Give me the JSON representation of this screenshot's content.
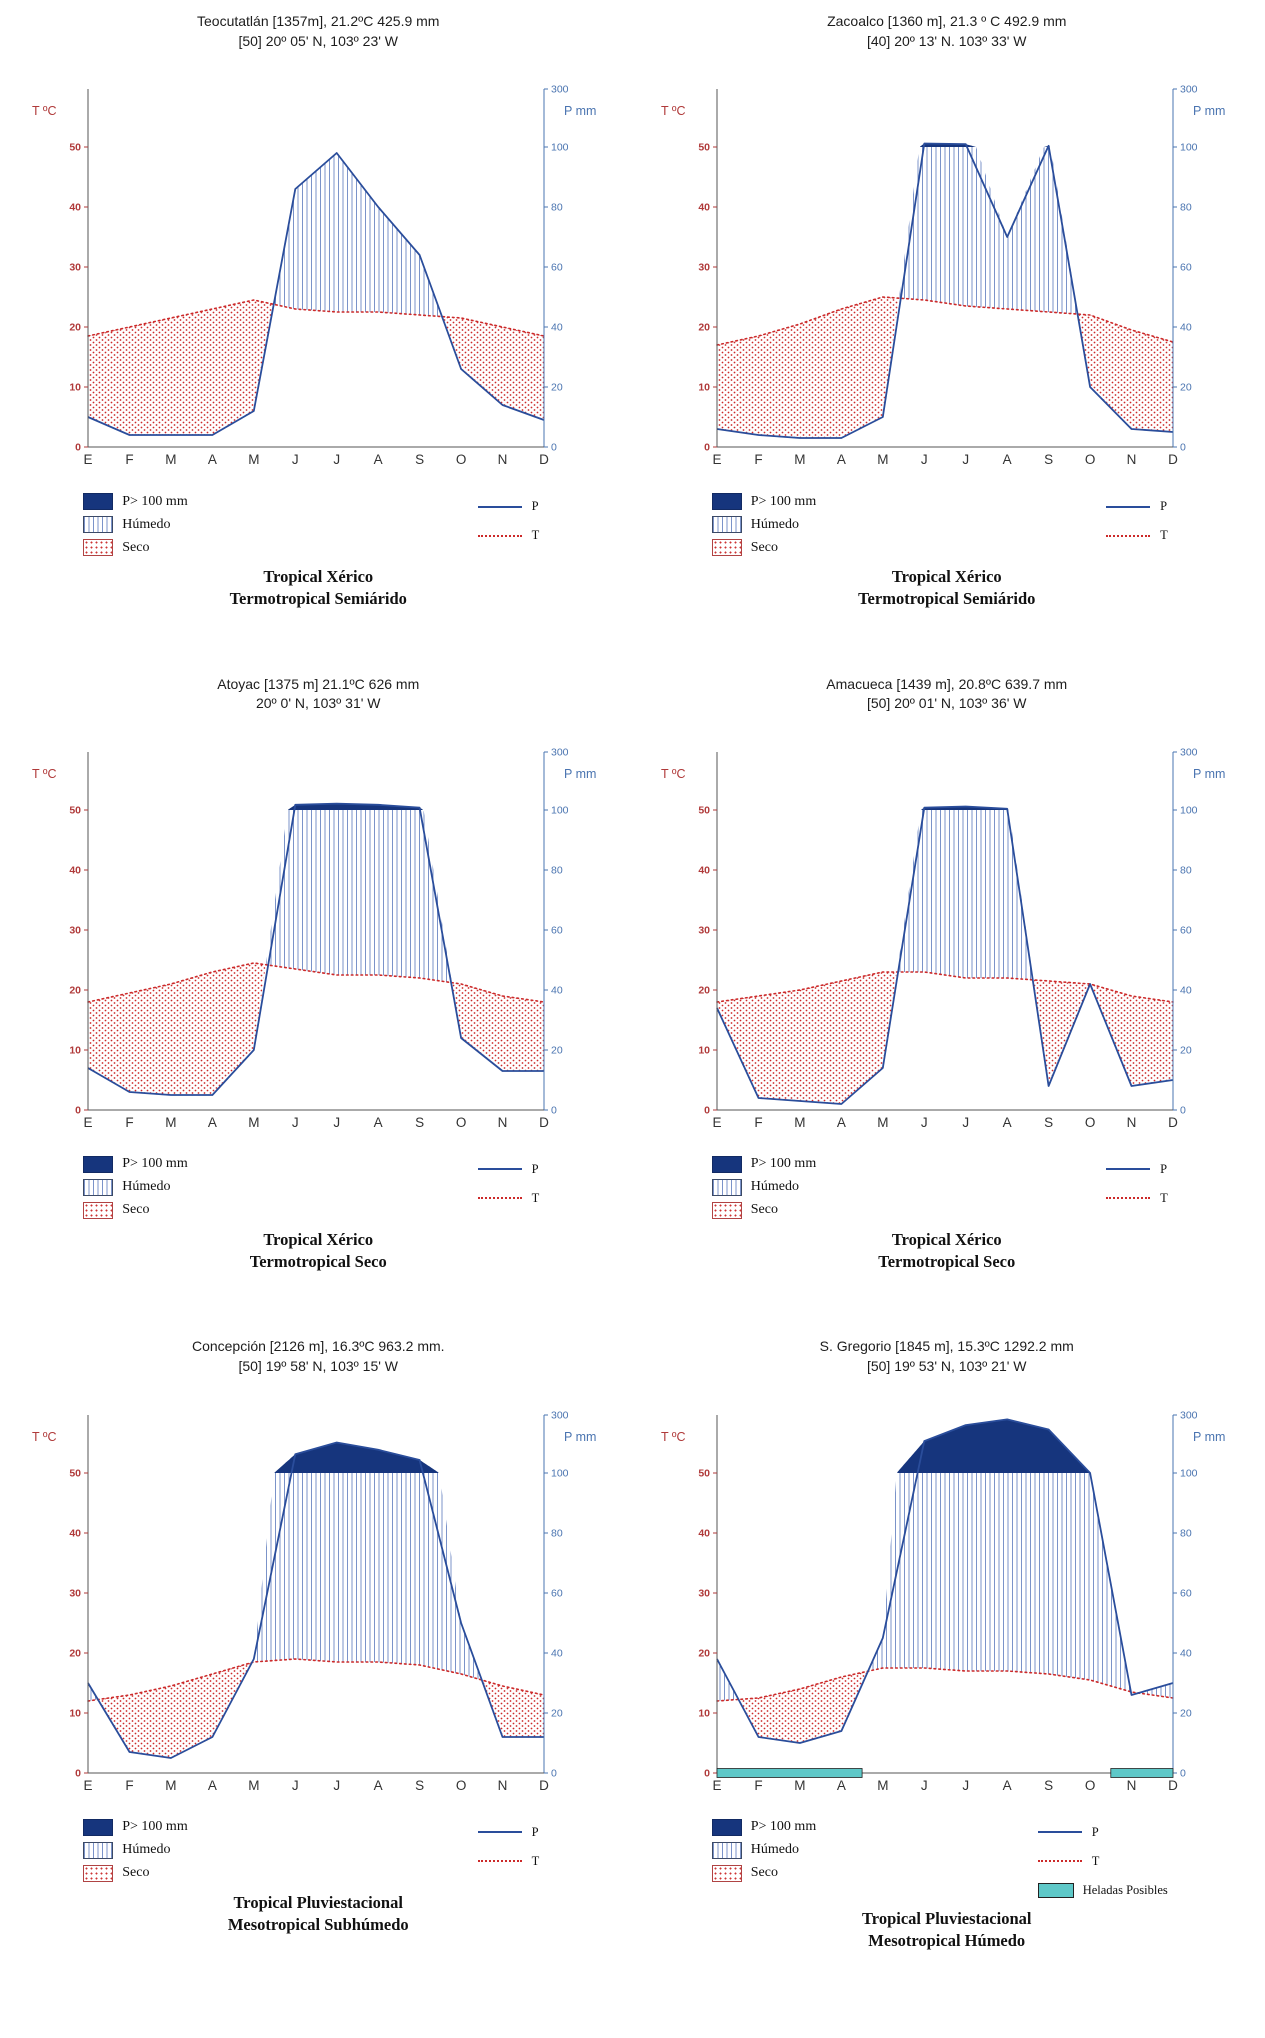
{
  "months": [
    "E",
    "F",
    "M",
    "A",
    "M",
    "J",
    "J",
    "A",
    "S",
    "O",
    "N",
    "D"
  ],
  "axes": {
    "t_label": "T ºC",
    "p_label": "P mm",
    "t_ticks": [
      0,
      10,
      20,
      30,
      40,
      50
    ],
    "p_ticks": [
      0,
      20,
      40,
      60,
      80,
      100,
      300
    ]
  },
  "legend": {
    "p100": "P> 100 mm",
    "humedo": "Húmedo",
    "seco": "Seco",
    "p": "P",
    "t": "T",
    "heladas": "Heladas Posibles"
  },
  "colors": {
    "p_line": "#2a4d9b",
    "t_line": "#cc2a2a",
    "navy": "#16357d",
    "hatch": "#7b93c9",
    "teal": "#5ec8c8",
    "t_axis": "#b03a3a",
    "p_axis": "#4a74b0"
  },
  "chart_data": [
    {
      "type": "area",
      "subtype": "walter-lieth-climograph",
      "name": "Teocutatlán",
      "title_line1": "Teocutatlán [1357m],  21.2ºC   425.9 mm",
      "title_line2": "[50] 20º 05' N,  103º 23' W",
      "class_line1": "Tropical Xérico",
      "class_line2": "Termotropical Semiárido",
      "elevation_m": 1357,
      "mean_temp_c": 21.2,
      "annual_precip_mm": 425.9,
      "t_axis_range": [
        0,
        50
      ],
      "p_axis_range": [
        0,
        300
      ],
      "precip_mm": [
        10,
        4,
        4,
        4,
        12,
        86,
        98,
        80,
        64,
        26,
        14,
        9
      ],
      "temp_c": [
        18.5,
        20,
        21.5,
        23,
        24.5,
        23,
        22.5,
        22.5,
        22,
        21.5,
        20,
        18.5
      ],
      "heladas_months": null
    },
    {
      "type": "area",
      "subtype": "walter-lieth-climograph",
      "name": "Zacoalco",
      "title_line1": "Zacoalco [1360 m], 21.3 º C  492.9 mm",
      "title_line2": "[40]  20º 13' N. 103º  33' W",
      "class_line1": "Tropical Xérico",
      "class_line2": "Termotropical Semiárido",
      "elevation_m": 1360,
      "mean_temp_c": 21.3,
      "annual_precip_mm": 492.9,
      "t_axis_range": [
        0,
        50
      ],
      "p_axis_range": [
        0,
        300
      ],
      "precip_mm": [
        6,
        4,
        3,
        3,
        10,
        112,
        110,
        70,
        104,
        20,
        6,
        5
      ],
      "temp_c": [
        17,
        18.5,
        20.5,
        23,
        25,
        24.5,
        23.5,
        23,
        22.5,
        22,
        19.5,
        17.5
      ],
      "heladas_months": null
    },
    {
      "type": "area",
      "subtype": "walter-lieth-climograph",
      "name": "Atoyac",
      "title_line1": "Atoyac [1375 m]  21.1ºC    626 mm",
      "title_line2": "20º 0' N,  103º 31' W",
      "class_line1": "Tropical Xérico",
      "class_line2": "Termotropical Seco",
      "elevation_m": 1375,
      "mean_temp_c": 21.1,
      "annual_precip_mm": 626,
      "t_axis_range": [
        0,
        50
      ],
      "p_axis_range": [
        0,
        300
      ],
      "precip_mm": [
        14,
        6,
        5,
        5,
        20,
        118,
        122,
        118,
        108,
        24,
        13,
        13
      ],
      "temp_c": [
        18,
        19.5,
        21,
        23,
        24.5,
        23.5,
        22.5,
        22.5,
        22,
        21,
        19,
        18
      ],
      "heladas_months": null
    },
    {
      "type": "area",
      "subtype": "walter-lieth-climograph",
      "name": "Amacueca",
      "title_line1": "Amacueca [1439 m],  20.8ºC     639.7 mm",
      "title_line2": "[50]  20º 01' N,  103º 36' W",
      "class_line1": "Tropical Xérico",
      "class_line2": "Termotropical Seco",
      "elevation_m": 1439,
      "mean_temp_c": 20.8,
      "annual_precip_mm": 639.7,
      "t_axis_range": [
        0,
        50
      ],
      "p_axis_range": [
        0,
        300
      ],
      "precip_mm": [
        34,
        4,
        3,
        2,
        14,
        108,
        112,
        104,
        8,
        42,
        8,
        10
      ],
      "temp_c": [
        18,
        19,
        20,
        21.5,
        23,
        23,
        22,
        22,
        21.5,
        21,
        19,
        18
      ],
      "heladas_months": null
    },
    {
      "type": "area",
      "subtype": "walter-lieth-climograph",
      "name": "Concepción",
      "title_line1": "Concepción [2126 m],  16.3ºC    963.2 mm.",
      "title_line2": "[50]  19º 58' N,  103º 15' W",
      "class_line1": "Tropical Pluviestacional",
      "class_line2": "Mesotropical Subhúmedo",
      "elevation_m": 2126,
      "mean_temp_c": 16.3,
      "annual_precip_mm": 963.2,
      "t_axis_range": [
        0,
        50
      ],
      "p_axis_range": [
        0,
        300
      ],
      "precip_mm": [
        30,
        7,
        5,
        12,
        38,
        165,
        205,
        180,
        145,
        50,
        12,
        12
      ],
      "temp_c": [
        12,
        13,
        14.5,
        16.5,
        18.5,
        19,
        18.5,
        18.5,
        18,
        16.5,
        14.5,
        13
      ],
      "heladas_months": null
    },
    {
      "type": "area",
      "subtype": "walter-lieth-climograph",
      "name": "S. Gregorio",
      "title_line1": "S. Gregorio [1845 m],  15.3ºC   1292.2 mm",
      "title_line2": "[50] 19º 53' N,  103º 21' W",
      "class_line1": "Tropical Pluviestacional",
      "class_line2": "Mesotropical Húmedo",
      "elevation_m": 1845,
      "mean_temp_c": 15.3,
      "annual_precip_mm": 1292.2,
      "t_axis_range": [
        0,
        50
      ],
      "p_axis_range": [
        0,
        300
      ],
      "precip_mm": [
        38,
        12,
        10,
        14,
        45,
        210,
        265,
        285,
        250,
        100,
        26,
        30
      ],
      "temp_c": [
        12,
        12.5,
        14,
        16,
        17.5,
        17.5,
        17,
        17,
        16.5,
        15.5,
        13.5,
        12.5
      ],
      "heladas_months": [
        0,
        1,
        2,
        3,
        10,
        11
      ]
    }
  ]
}
